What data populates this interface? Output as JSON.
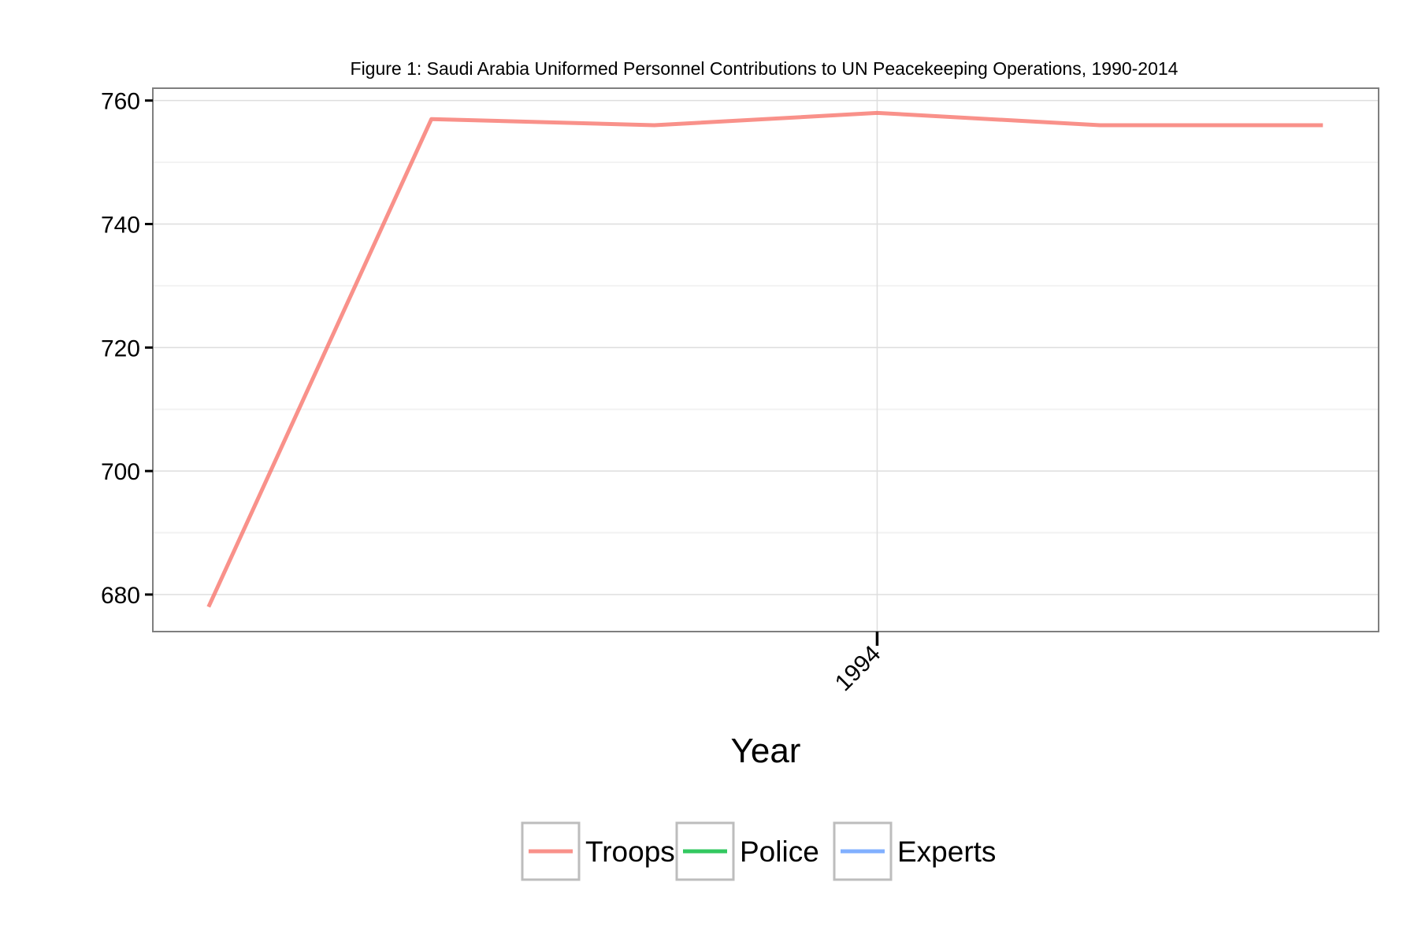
{
  "chart_data": {
    "type": "line",
    "title": "Figure 1: Saudi Arabia Uniformed Personnel Contributions to UN Peacekeeping Operations, 1990-2014",
    "xlabel": "Year",
    "ylabel": "",
    "ylim": [
      674,
      762
    ],
    "yticks": [
      680,
      700,
      720,
      740,
      760
    ],
    "xlim": [
      0.75,
      6.25
    ],
    "xticks": [
      {
        "x": 4,
        "label": "1994"
      }
    ],
    "grid": true,
    "legend_position": "bottom",
    "series": [
      {
        "name": "Troops",
        "color": "#F8766D",
        "x": [
          1,
          2,
          3,
          4,
          5,
          6
        ],
        "values": [
          678,
          757,
          756,
          758,
          756,
          756
        ]
      },
      {
        "name": "Police",
        "color": "#00BA38",
        "x": [],
        "values": []
      },
      {
        "name": "Experts",
        "color": "#619CFF",
        "x": [],
        "values": []
      }
    ]
  }
}
